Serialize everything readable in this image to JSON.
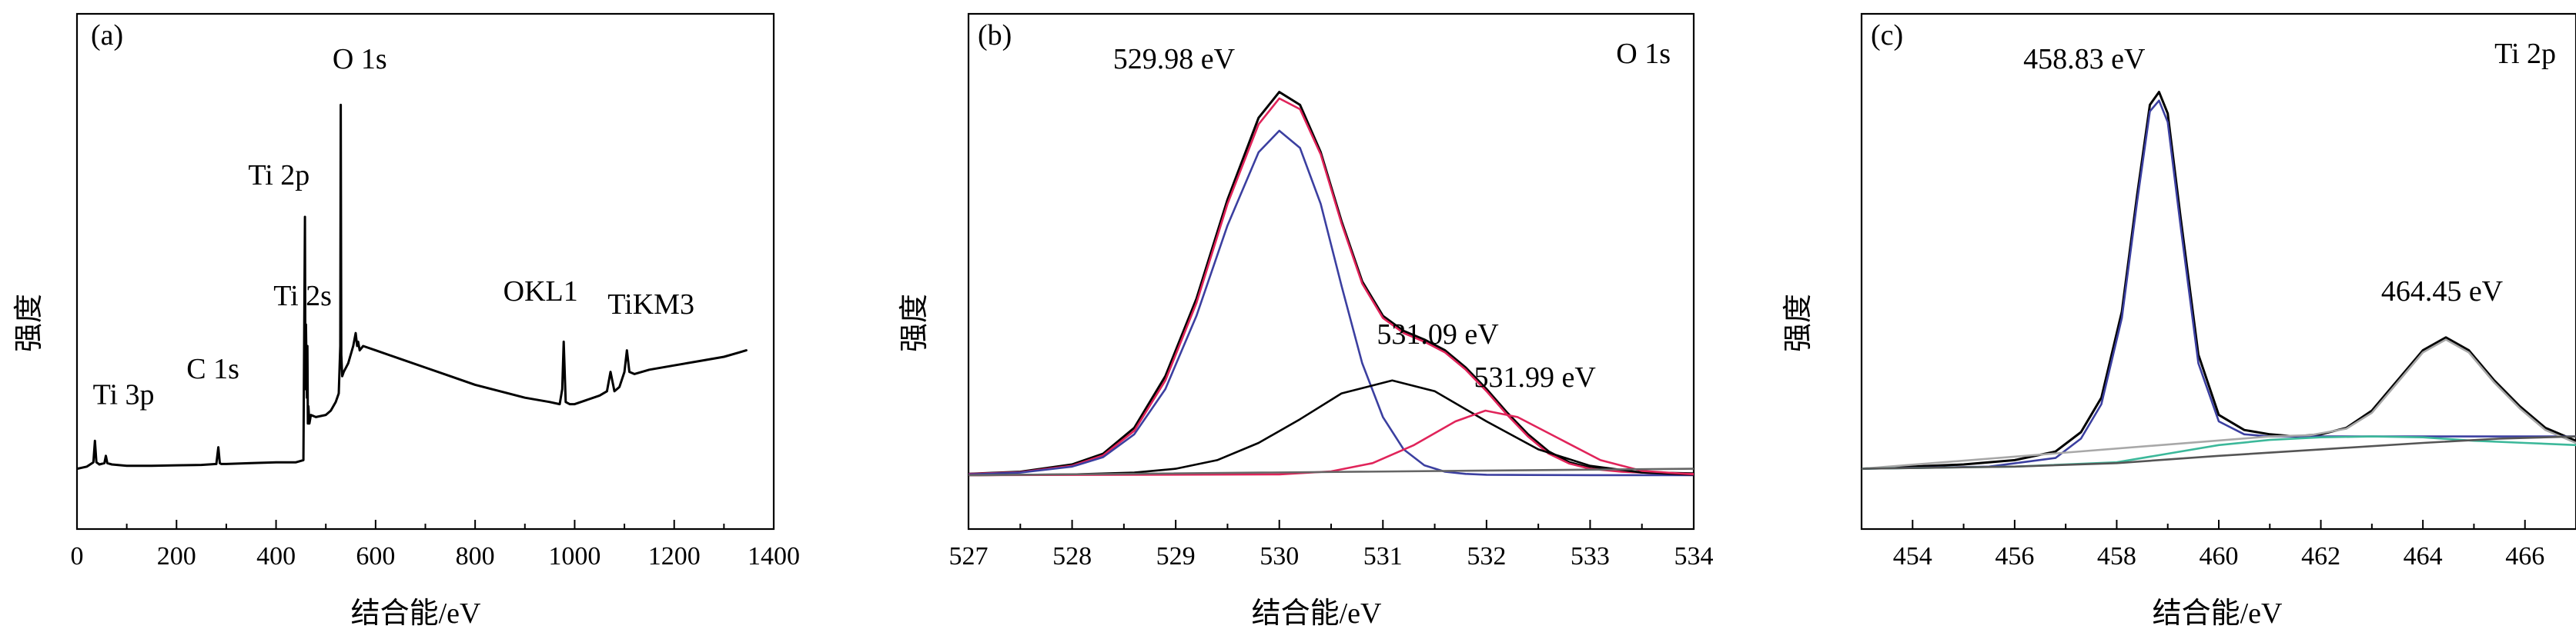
{
  "chart_data": [
    {
      "type": "line",
      "panel_label": "(a)",
      "xlabel": "结合能/eV",
      "ylabel": "强度",
      "xlim": [
        0,
        1400
      ],
      "xticks": [
        0,
        200,
        400,
        600,
        800,
        1000,
        1200,
        1400
      ],
      "ylim": [
        0,
        100
      ],
      "y_ticks_shown": false,
      "annotations": [
        {
          "text": "Ti 3p",
          "x": 38,
          "y": 14
        },
        {
          "text": "C 1s",
          "x": 285,
          "y": 20
        },
        {
          "text": "Ti 2p",
          "x": 460,
          "y": 65
        },
        {
          "text": "O 1s",
          "x": 531,
          "y": 92
        },
        {
          "text": "Ti 2s",
          "x": 565,
          "y": 37
        },
        {
          "text": "OKL1",
          "x": 978,
          "y": 38
        },
        {
          "text": "TiKM3",
          "x": 1105,
          "y": 35
        }
      ],
      "series": [
        {
          "color": "#000000",
          "x": [
            0,
            20,
            33,
            36,
            39,
            45,
            55,
            58,
            61,
            70,
            100,
            150,
            200,
            250,
            280,
            284,
            287,
            290,
            300,
            350,
            400,
            440,
            455,
            458,
            459,
            460,
            462,
            463,
            464,
            465,
            467,
            470,
            480,
            500,
            510,
            520,
            526,
            529,
            530,
            531,
            533,
            536,
            545,
            555,
            560,
            563,
            565,
            568,
            575,
            600,
            650,
            700,
            750,
            800,
            850,
            900,
            950,
            970,
            975,
            978,
            982,
            990,
            1000,
            1050,
            1065,
            1072,
            1080,
            1090,
            1100,
            1105,
            1110,
            1120,
            1150,
            1200,
            1250,
            1300,
            1330,
            1345
          ],
          "y": [
            1.5,
            2.0,
            3.0,
            8.0,
            3.0,
            2.5,
            2.8,
            4.5,
            2.8,
            2.5,
            2.2,
            2.2,
            2.3,
            2.4,
            2.6,
            6.5,
            2.8,
            2.6,
            2.6,
            2.8,
            3.0,
            3.0,
            3.5,
            60.0,
            20.0,
            35.0,
            18.0,
            30.0,
            12.0,
            16.0,
            12.0,
            14.0,
            13.5,
            14.0,
            15.0,
            17.0,
            19.0,
            30.0,
            86.0,
            28.0,
            23.0,
            24.0,
            26.0,
            30.0,
            33.0,
            30.0,
            31.0,
            29.0,
            30.0,
            29.0,
            27.0,
            25.0,
            23.0,
            21.0,
            19.5,
            18.0,
            17.0,
            16.5,
            20.0,
            31.0,
            17.0,
            16.5,
            16.5,
            18.5,
            19.5,
            24.0,
            19.5,
            20.5,
            24.0,
            29.0,
            24.0,
            23.5,
            24.5,
            25.5,
            26.5,
            27.5,
            28.5,
            29.0
          ]
        }
      ]
    },
    {
      "type": "line",
      "panel_label": "(b)",
      "title": "O 1s",
      "xlabel": "结合能/eV",
      "ylabel": "强度",
      "xlim": [
        527,
        534
      ],
      "xticks": [
        527,
        528,
        529,
        530,
        531,
        532,
        533,
        534
      ],
      "ylim": [
        0,
        100
      ],
      "y_ticks_shown": false,
      "annotations": [
        {
          "text": "529.98 eV",
          "x": 529.98,
          "y": 92
        },
        {
          "text": "531.09 eV",
          "x": 531.09,
          "y": 28
        },
        {
          "text": "531.99 eV",
          "x": 531.99,
          "y": 18
        }
      ],
      "series": [
        {
          "color": "#000000",
          "x": [
            527.0,
            527.5,
            528.0,
            528.3,
            528.6,
            528.9,
            529.2,
            529.5,
            529.8,
            530.0,
            530.2,
            530.4,
            530.6,
            530.8,
            531.0,
            531.2,
            531.4,
            531.6,
            531.8,
            532.0,
            532.2,
            532.4,
            532.6,
            532.8,
            533.0,
            533.3,
            533.6,
            534.0
          ],
          "y": [
            0.3,
            0.8,
            2.5,
            5.0,
            11.0,
            23.0,
            41.0,
            64.0,
            83.0,
            89.0,
            86.0,
            75.0,
            59.0,
            45.0,
            37.0,
            33.5,
            31.5,
            29.0,
            25.0,
            20.0,
            14.5,
            9.5,
            5.5,
            3.0,
            1.7,
            0.9,
            0.6,
            0.4
          ]
        },
        {
          "color": "#e0245a",
          "x": [
            527.0,
            527.5,
            528.0,
            528.3,
            528.6,
            528.9,
            529.2,
            529.5,
            529.8,
            530.0,
            530.2,
            530.4,
            530.6,
            530.8,
            531.0,
            531.2,
            531.4,
            531.6,
            531.8,
            532.0,
            532.2,
            532.4,
            532.6,
            532.8,
            533.0,
            533.3,
            533.6,
            534.0
          ],
          "y": [
            0.3,
            0.7,
            2.2,
            4.6,
            10.3,
            22.0,
            40.0,
            63.0,
            81.5,
            87.5,
            85.0,
            74.5,
            58.5,
            44.5,
            36.5,
            33.0,
            31.0,
            28.5,
            24.5,
            19.5,
            14.0,
            9.0,
            5.0,
            2.7,
            1.5,
            0.8,
            0.5,
            0.3
          ]
        },
        {
          "color": "#3b3fa0",
          "x": [
            527.0,
            527.5,
            528.0,
            528.3,
            528.6,
            528.9,
            529.2,
            529.5,
            529.8,
            530.0,
            530.2,
            530.4,
            530.6,
            530.8,
            531.0,
            531.2,
            531.4,
            531.6,
            531.8,
            532.0,
            532.4,
            533.0,
            534.0
          ],
          "y": [
            0.2,
            0.6,
            2.0,
            4.2,
            9.5,
            20.0,
            37.0,
            58.0,
            75.0,
            80.0,
            76.0,
            63.0,
            44.0,
            26.0,
            13.5,
            6.0,
            2.3,
            0.8,
            0.3,
            0.1,
            0.05,
            0.02,
            0.0
          ]
        },
        {
          "color": "#000000",
          "x": [
            527.0,
            528.0,
            528.6,
            529.0,
            529.4,
            529.8,
            530.2,
            530.6,
            531.09,
            531.5,
            532.0,
            532.5,
            533.0,
            533.5,
            534.0
          ],
          "y": [
            0.0,
            0.2,
            0.6,
            1.5,
            3.5,
            7.5,
            13.0,
            19.0,
            22.0,
            19.5,
            12.5,
            6.0,
            2.2,
            0.6,
            0.1
          ]
        },
        {
          "color": "#e0245a",
          "x": [
            527.0,
            530.0,
            530.5,
            530.9,
            531.3,
            531.7,
            531.99,
            532.3,
            532.7,
            533.1,
            533.5,
            534.0
          ],
          "y": [
            0.0,
            0.2,
            0.9,
            2.8,
            7.0,
            12.5,
            15.0,
            13.5,
            8.5,
            3.5,
            1.0,
            0.2
          ]
        },
        {
          "color": "#666666",
          "x": [
            527.0,
            534.0
          ],
          "y": [
            0.0,
            1.5
          ]
        }
      ]
    },
    {
      "type": "line",
      "panel_label": "(c)",
      "title": "Ti 2p",
      "xlabel": "结合能/eV",
      "ylabel": "强度",
      "xlim": [
        453,
        467
      ],
      "xticks": [
        454,
        456,
        458,
        460,
        462,
        464,
        466
      ],
      "ylim": [
        0,
        100
      ],
      "y_ticks_shown": false,
      "annotations": [
        {
          "text": "458.83 eV",
          "x": 458.83,
          "y": 92
        },
        {
          "text": "464.45 eV",
          "x": 464.45,
          "y": 38
        }
      ],
      "series": [
        {
          "color": "#000000",
          "x": [
            453.0,
            454.0,
            455.0,
            456.0,
            456.8,
            457.3,
            457.7,
            458.1,
            458.4,
            458.65,
            458.83,
            459.0,
            459.25,
            459.6,
            460.0,
            460.5,
            461.0,
            461.5,
            462.0,
            462.5,
            463.0,
            463.5,
            464.0,
            464.45,
            464.9,
            465.4,
            465.9,
            466.4,
            467.0
          ],
          "y": [
            1.5,
            2.0,
            2.5,
            3.5,
            5.5,
            10.0,
            18.0,
            38.0,
            65.0,
            86.0,
            89.0,
            84.0,
            60.0,
            28.0,
            14.0,
            10.5,
            9.5,
            9.0,
            9.5,
            11.0,
            15.0,
            22.0,
            29.0,
            32.0,
            29.0,
            22.0,
            16.0,
            11.0,
            8.0
          ]
        },
        {
          "color": "#3b3fa0",
          "x": [
            453.0,
            455.5,
            456.8,
            457.3,
            457.7,
            458.1,
            458.4,
            458.65,
            458.83,
            459.0,
            459.25,
            459.6,
            460.0,
            460.5,
            461.0,
            462.0,
            463.0,
            467.0
          ],
          "y": [
            1.5,
            2.0,
            4.0,
            8.5,
            16.5,
            36.5,
            63.5,
            84.5,
            87.0,
            82.0,
            58.0,
            26.0,
            12.5,
            9.5,
            9.0,
            9.0,
            9.0,
            9.0
          ]
        },
        {
          "color": "#a8a8a8",
          "x": [
            453.0,
            461.0,
            461.8,
            462.5,
            463.0,
            463.5,
            464.0,
            464.45,
            464.9,
            465.4,
            465.9,
            466.4,
            467.0
          ],
          "y": [
            1.5,
            9.0,
            9.3,
            10.8,
            14.5,
            21.5,
            28.5,
            31.5,
            28.5,
            21.5,
            15.5,
            10.5,
            7.5
          ]
        },
        {
          "color": "#3cb89a",
          "x": [
            453.0,
            456.0,
            458.0,
            459.0,
            460.0,
            461.0,
            462.0,
            463.0,
            464.0,
            465.0,
            466.0,
            467.0
          ],
          "y": [
            1.5,
            2.0,
            3.0,
            5.0,
            7.0,
            8.2,
            8.8,
            9.0,
            8.8,
            8.0,
            7.5,
            7.0
          ]
        },
        {
          "color": "#555555",
          "x": [
            453.0,
            456.0,
            458.0,
            460.0,
            462.0,
            464.0,
            465.5,
            467.0
          ],
          "y": [
            1.5,
            2.0,
            2.8,
            4.5,
            6.0,
            7.5,
            8.5,
            9.0
          ]
        }
      ]
    }
  ]
}
